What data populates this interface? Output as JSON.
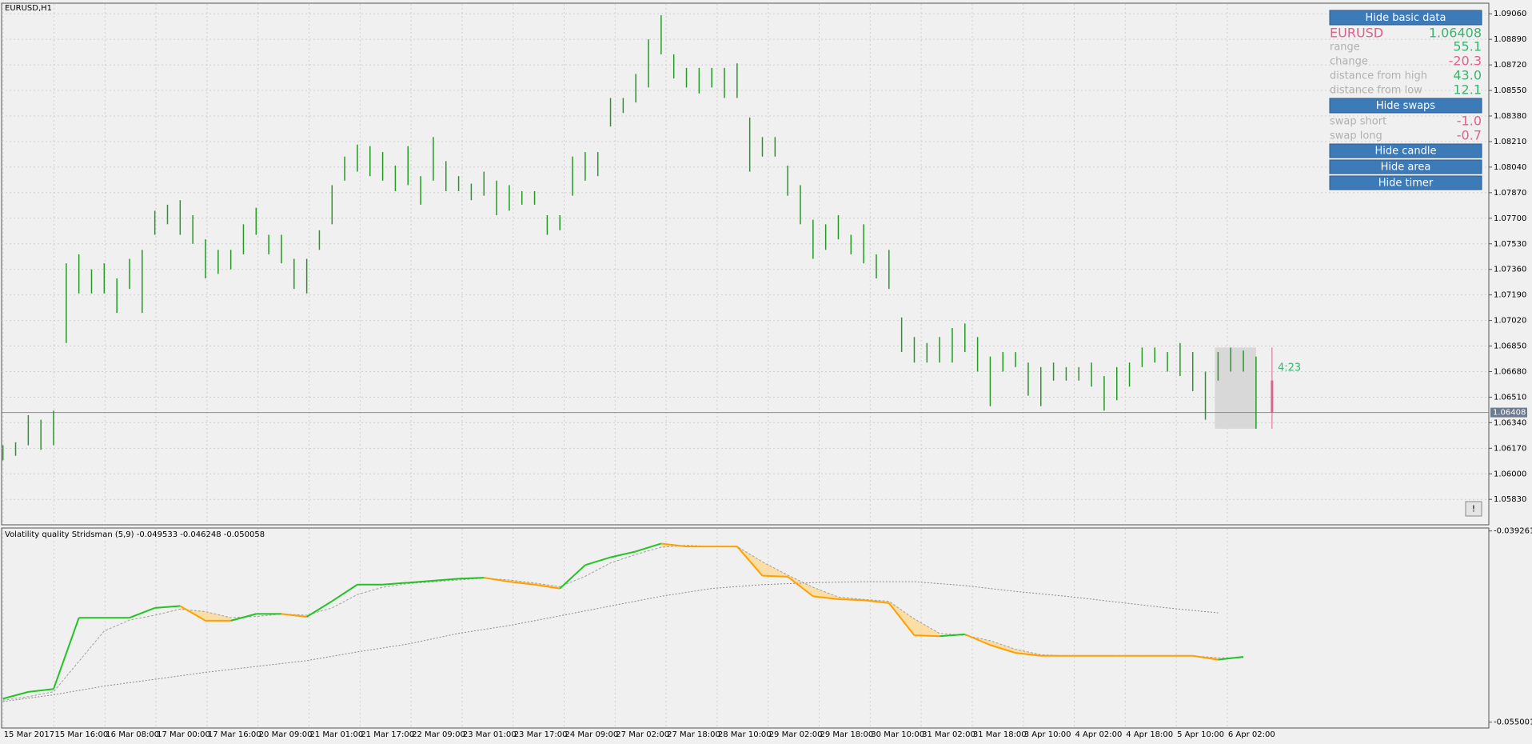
{
  "chart_data": [
    {
      "type": "ohlc",
      "title": "EURUSD,H1",
      "bar_color": "#239a23",
      "high": [
        1.0619,
        1.0621,
        1.0639,
        1.0636,
        1.0642,
        1.074,
        1.0746,
        1.0736,
        1.074,
        1.073,
        1.0743,
        1.0749,
        1.0775,
        1.0779,
        1.0782,
        1.0772,
        1.0756,
        1.0749,
        1.0749,
        1.0766,
        1.0777,
        1.0759,
        1.0759,
        1.0743,
        1.0743,
        1.0762,
        1.0792,
        1.0811,
        1.0819,
        1.0818,
        1.0814,
        1.0805,
        1.0818,
        1.0798,
        1.0824,
        1.0808,
        1.0798,
        1.0793,
        1.0801,
        1.0795,
        1.0792,
        1.0788,
        1.0788,
        1.0772,
        1.0772,
        1.0811,
        1.0814,
        1.0814,
        1.085,
        1.085,
        1.0866,
        1.0889,
        1.0905,
        1.0879,
        1.087,
        1.087,
        1.087,
        1.087,
        1.0873,
        1.0837,
        1.0824,
        1.0824,
        1.0805,
        1.0792,
        1.0769,
        1.0766,
        1.0772,
        1.0759,
        1.0766,
        1.0746,
        1.0749,
        1.0704,
        1.0691,
        1.0687,
        1.0691,
        1.0697,
        1.07,
        1.0691,
        1.0678,
        1.0681,
        1.0681,
        1.0674,
        1.0671,
        1.0674,
        1.0671,
        1.0671,
        1.0674,
        1.0665,
        1.0671,
        1.0674,
        1.0684,
        1.0684,
        1.0681,
        1.0687,
        1.0681,
        1.0668,
        1.0681,
        1.0684,
        1.0682,
        1.0678
      ],
      "low": [
        1.0609,
        1.0612,
        1.0619,
        1.0616,
        1.0619,
        1.0687,
        1.072,
        1.072,
        1.072,
        1.0707,
        1.0723,
        1.0707,
        1.0759,
        1.0766,
        1.0759,
        1.0753,
        1.073,
        1.0733,
        1.0736,
        1.0746,
        1.0759,
        1.0746,
        1.074,
        1.0723,
        1.072,
        1.0749,
        1.0766,
        1.0795,
        1.0801,
        1.0798,
        1.0795,
        1.0788,
        1.0792,
        1.0779,
        1.0795,
        1.0788,
        1.0788,
        1.0782,
        1.0785,
        1.0772,
        1.0775,
        1.0779,
        1.0779,
        1.0759,
        1.0762,
        1.0785,
        1.0795,
        1.0798,
        1.0831,
        1.084,
        1.0847,
        1.0857,
        1.0879,
        1.0863,
        1.0857,
        1.0853,
        1.0857,
        1.085,
        1.085,
        1.0801,
        1.0811,
        1.0811,
        1.0785,
        1.0766,
        1.0743,
        1.0749,
        1.0756,
        1.0746,
        1.074,
        1.073,
        1.0723,
        1.0681,
        1.0674,
        1.0674,
        1.0674,
        1.0674,
        1.0681,
        1.0668,
        1.0645,
        1.0668,
        1.0671,
        1.0652,
        1.0645,
        1.0662,
        1.0662,
        1.0662,
        1.0658,
        1.0642,
        1.0649,
        1.0658,
        1.0671,
        1.0674,
        1.0668,
        1.0665,
        1.0655,
        1.0636,
        1.0662,
        1.0668,
        1.0668,
        1.063
      ],
      "ylim": [
        1.05661,
        1.09125
      ],
      "yticks": [
        {
          "value": 1.0906,
          "label": "1.09060"
        },
        {
          "value": 1.0889,
          "label": "1.08890"
        },
        {
          "value": 1.0872,
          "label": "1.08720"
        },
        {
          "value": 1.0855,
          "label": "1.08550"
        },
        {
          "value": 1.0838,
          "label": "1.08380"
        },
        {
          "value": 1.0821,
          "label": "1.08210"
        },
        {
          "value": 1.0804,
          "label": "1.08040"
        },
        {
          "value": 1.0787,
          "label": "1.07870"
        },
        {
          "value": 1.077,
          "label": "1.07700"
        },
        {
          "value": 1.0753,
          "label": "1.07530"
        },
        {
          "value": 1.0736,
          "label": "1.07360"
        },
        {
          "value": 1.0719,
          "label": "1.07190"
        },
        {
          "value": 1.0702,
          "label": "1.07020"
        },
        {
          "value": 1.0685,
          "label": "1.06850"
        },
        {
          "value": 1.0668,
          "label": "1.06680"
        },
        {
          "value": 1.0651,
          "label": "1.06510"
        },
        {
          "value": 1.0634,
          "label": "1.06340"
        },
        {
          "value": 1.0617,
          "label": "1.06170"
        },
        {
          "value": 1.06,
          "label": "1.06000"
        },
        {
          "value": 1.0583,
          "label": "1.05830"
        }
      ],
      "current_price": 1.06408,
      "timer": "4:23",
      "grid": true
    },
    {
      "type": "line",
      "title": "Volatility quality Stridsman (5,9) -0.049533 -0.046248 -0.050058",
      "series": [
        {
          "color": "#22c322",
          "down_color": "#ff9f00",
          "values": [
            -0.05307,
            -0.05251,
            -0.05227,
            -0.04641,
            -0.04641,
            -0.04641,
            -0.0456,
            -0.04544,
            -0.04665,
            -0.04665,
            -0.04609,
            -0.04609,
            -0.04633,
            -0.04504,
            -0.04368,
            -0.04368,
            -0.04352,
            -0.04336,
            -0.04319,
            -0.04311,
            -0.04344,
            -0.04368,
            -0.044,
            -0.04207,
            -0.04143,
            -0.04095,
            -0.0403,
            -0.04054,
            -0.04054,
            -0.04054,
            -0.04295,
            -0.04303,
            -0.04464,
            -0.04488,
            -0.04496,
            -0.0452,
            -0.04785,
            -0.04793,
            -0.04777,
            -0.04866,
            -0.0493,
            -0.04954,
            -0.04954,
            -0.04954,
            -0.04954,
            -0.04954,
            -0.04954,
            -0.04954,
            -0.04986,
            -0.04962
          ]
        },
        {
          "color": "#a0a0a0",
          "values": [
            -0.0532,
            -0.0529,
            -0.0525,
            -0.05,
            -0.0475,
            -0.0466,
            -0.0462,
            -0.0457,
            -0.0459,
            -0.0464,
            -0.0463,
            -0.0461,
            -0.0462,
            -0.0456,
            -0.0445,
            -0.0439,
            -0.0436,
            -0.04345,
            -0.0433,
            -0.04315,
            -0.0433,
            -0.04355,
            -0.04385,
            -0.043,
            -0.0419,
            -0.0412,
            -0.0406,
            -0.04045,
            -0.04054,
            -0.04054,
            -0.0418,
            -0.0429,
            -0.0439,
            -0.0447,
            -0.0449,
            -0.04505,
            -0.0465,
            -0.0477,
            -0.04785,
            -0.0483,
            -0.049,
            -0.04945,
            -0.04954,
            -0.04954,
            -0.04954,
            -0.04954,
            -0.04954,
            -0.04954,
            -0.0497,
            -0.0497
          ]
        },
        {
          "color": "#8a8a8a",
          "values": [
            -0.05331,
            -0.05275,
            -0.05203,
            -0.05147,
            -0.0509,
            -0.05042,
            -0.04994,
            -0.04922,
            -0.04857,
            -0.04769,
            -0.04705,
            -0.04625,
            -0.04544,
            -0.04464,
            -0.044,
            -0.04368,
            -0.04352,
            -0.04344,
            -0.04344,
            -0.04376,
            -0.04424,
            -0.04464,
            -0.04512,
            -0.0456,
            -0.04601
          ]
        }
      ],
      "ylim": [
        -0.055483,
        -0.03902
      ],
      "yticks": [
        -0.039261,
        -0.055001
      ]
    }
  ],
  "time_axis": [
    "15 Mar 2017",
    "15 Mar 16:00",
    "16 Mar 08:00",
    "17 Mar 00:00",
    "17 Mar 16:00",
    "20 Mar 09:00",
    "21 Mar 01:00",
    "21 Mar 17:00",
    "22 Mar 09:00",
    "23 Mar 01:00",
    "23 Mar 17:00",
    "24 Mar 09:00",
    "27 Mar 02:00",
    "27 Mar 18:00",
    "28 Mar 10:00",
    "29 Mar 02:00",
    "29 Mar 18:00",
    "30 Mar 10:00",
    "31 Mar 02:00",
    "31 Mar 18:00",
    "3 Apr 10:00",
    "4 Apr 02:00",
    "4 Apr 18:00",
    "5 Apr 10:00",
    "6 Apr 02:00"
  ],
  "panel": {
    "buttons": {
      "basic": "Hide basic data",
      "swaps": "Hide swaps",
      "candle": "Hide candle",
      "area": "Hide area",
      "timer": "Hide timer"
    },
    "symbol": {
      "label": "EURUSD",
      "value": "1.06408"
    },
    "rows": [
      {
        "label": "range",
        "value": "55.1"
      },
      {
        "label": "change",
        "value": "-20.3"
      },
      {
        "label": "distance from high",
        "value": "43.0"
      },
      {
        "label": "distance from low",
        "value": "12.1"
      }
    ],
    "swaps": [
      {
        "label": "swap short",
        "value": "-1.0"
      },
      {
        "label": "swap long",
        "value": "-0.7"
      }
    ],
    "alert": "!"
  }
}
